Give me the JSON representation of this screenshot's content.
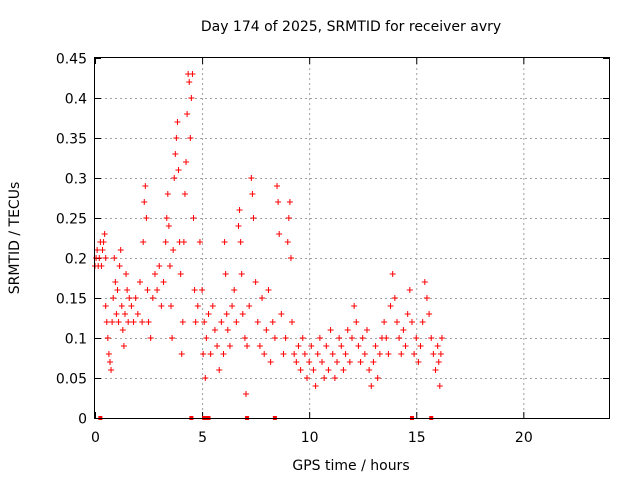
{
  "chart_data": {
    "type": "scatter",
    "title": "Day 174 of 2025, SRMTID for receiver avry",
    "xlabel": "GPS time / hours",
    "ylabel": "SRMTID / TECUs",
    "xlim": [
      0,
      24
    ],
    "ylim": [
      0,
      0.45
    ],
    "xticks": [
      0,
      5,
      10,
      15,
      20
    ],
    "yticks": [
      0,
      0.05,
      0.1,
      0.15,
      0.2,
      0.25,
      0.3,
      0.35,
      0.4,
      0.45
    ],
    "xtick_labels": [
      "0",
      "5",
      "10",
      "15",
      "20"
    ],
    "ytick_labels": [
      "0",
      "0.05",
      "0.1",
      "0.15",
      "0.2",
      "0.25",
      "0.3",
      "0.35",
      "0.4",
      "0.45"
    ],
    "grid": true,
    "marker": "plus",
    "color": "#ff0000",
    "series": [
      {
        "points": [
          [
            0.0,
            0.19
          ],
          [
            0.05,
            0.2
          ],
          [
            0.1,
            0.21
          ],
          [
            0.15,
            0.19
          ],
          [
            0.2,
            0.2
          ],
          [
            0.25,
            0.22
          ],
          [
            0.3,
            0.19
          ],
          [
            0.35,
            0.21
          ],
          [
            0.4,
            0.22
          ],
          [
            0.45,
            0.23
          ],
          [
            0.5,
            0.2
          ],
          [
            0.5,
            0.14
          ],
          [
            0.55,
            0.12
          ],
          [
            0.6,
            0.1
          ],
          [
            0.65,
            0.08
          ],
          [
            0.7,
            0.07
          ],
          [
            0.75,
            0.06
          ],
          [
            0.8,
            0.12
          ],
          [
            0.85,
            0.15
          ],
          [
            0.9,
            0.2
          ],
          [
            0.95,
            0.17
          ],
          [
            1.0,
            0.13
          ],
          [
            1.05,
            0.16
          ],
          [
            1.1,
            0.12
          ],
          [
            1.15,
            0.19
          ],
          [
            1.2,
            0.21
          ],
          [
            1.25,
            0.14
          ],
          [
            1.3,
            0.11
          ],
          [
            1.35,
            0.09
          ],
          [
            1.4,
            0.13
          ],
          [
            1.45,
            0.18
          ],
          [
            1.5,
            0.16
          ],
          [
            1.55,
            0.12
          ],
          [
            1.6,
            0.15
          ],
          [
            1.7,
            0.14
          ],
          [
            1.8,
            0.12
          ],
          [
            1.9,
            0.15
          ],
          [
            2.0,
            0.13
          ],
          [
            2.1,
            0.17
          ],
          [
            2.2,
            0.12
          ],
          [
            2.25,
            0.22
          ],
          [
            2.3,
            0.27
          ],
          [
            2.35,
            0.29
          ],
          [
            2.4,
            0.25
          ],
          [
            2.45,
            0.16
          ],
          [
            2.5,
            0.12
          ],
          [
            2.6,
            0.1
          ],
          [
            2.7,
            0.15
          ],
          [
            2.8,
            0.18
          ],
          [
            2.9,
            0.16
          ],
          [
            3.0,
            0.19
          ],
          [
            3.1,
            0.14
          ],
          [
            3.2,
            0.17
          ],
          [
            3.3,
            0.22
          ],
          [
            3.35,
            0.25
          ],
          [
            3.4,
            0.28
          ],
          [
            3.45,
            0.24
          ],
          [
            3.5,
            0.19
          ],
          [
            3.55,
            0.14
          ],
          [
            3.6,
            0.1
          ],
          [
            3.65,
            0.21
          ],
          [
            3.7,
            0.3
          ],
          [
            3.75,
            0.33
          ],
          [
            3.8,
            0.35
          ],
          [
            3.85,
            0.37
          ],
          [
            3.9,
            0.31
          ],
          [
            3.95,
            0.22
          ],
          [
            4.0,
            0.18
          ],
          [
            4.05,
            0.08
          ],
          [
            4.1,
            0.12
          ],
          [
            4.15,
            0.22
          ],
          [
            4.2,
            0.28
          ],
          [
            4.25,
            0.32
          ],
          [
            4.3,
            0.38
          ],
          [
            4.35,
            0.43
          ],
          [
            4.4,
            0.42
          ],
          [
            4.45,
            0.35
          ],
          [
            4.5,
            0.4
          ],
          [
            4.55,
            0.43
          ],
          [
            4.6,
            0.25
          ],
          [
            4.65,
            0.16
          ],
          [
            4.7,
            0.12
          ],
          [
            4.8,
            0.14
          ],
          [
            4.9,
            0.22
          ],
          [
            5.0,
            0.16
          ],
          [
            5.05,
            0.08
          ],
          [
            5.1,
            0.12
          ],
          [
            5.15,
            0.05
          ],
          [
            5.2,
            0.1
          ],
          [
            5.3,
            0.13
          ],
          [
            5.4,
            0.08
          ],
          [
            5.5,
            0.14
          ],
          [
            5.6,
            0.11
          ],
          [
            5.7,
            0.09
          ],
          [
            5.8,
            0.06
          ],
          [
            5.9,
            0.12
          ],
          [
            6.0,
            0.08
          ],
          [
            6.05,
            0.22
          ],
          [
            6.1,
            0.18
          ],
          [
            6.15,
            0.13
          ],
          [
            6.2,
            0.11
          ],
          [
            6.3,
            0.09
          ],
          [
            6.4,
            0.14
          ],
          [
            6.5,
            0.16
          ],
          [
            6.6,
            0.12
          ],
          [
            6.7,
            0.24
          ],
          [
            6.75,
            0.26
          ],
          [
            6.8,
            0.22
          ],
          [
            6.85,
            0.18
          ],
          [
            6.9,
            0.13
          ],
          [
            7.0,
            0.1
          ],
          [
            7.05,
            0.03
          ],
          [
            7.1,
            0.09
          ],
          [
            7.2,
            0.14
          ],
          [
            7.3,
            0.3
          ],
          [
            7.35,
            0.28
          ],
          [
            7.4,
            0.25
          ],
          [
            7.5,
            0.17
          ],
          [
            7.6,
            0.12
          ],
          [
            7.7,
            0.09
          ],
          [
            7.8,
            0.15
          ],
          [
            7.9,
            0.08
          ],
          [
            8.0,
            0.11
          ],
          [
            8.1,
            0.16
          ],
          [
            8.2,
            0.07
          ],
          [
            8.3,
            0.12
          ],
          [
            8.4,
            0.1
          ],
          [
            8.5,
            0.29
          ],
          [
            8.55,
            0.27
          ],
          [
            8.6,
            0.23
          ],
          [
            8.7,
            0.13
          ],
          [
            8.8,
            0.08
          ],
          [
            8.9,
            0.1
          ],
          [
            9.0,
            0.22
          ],
          [
            9.05,
            0.25
          ],
          [
            9.1,
            0.27
          ],
          [
            9.15,
            0.2
          ],
          [
            9.2,
            0.12
          ],
          [
            9.3,
            0.08
          ],
          [
            9.4,
            0.07
          ],
          [
            9.5,
            0.09
          ],
          [
            9.6,
            0.06
          ],
          [
            9.7,
            0.1
          ],
          [
            9.8,
            0.08
          ],
          [
            9.9,
            0.05
          ],
          [
            10.0,
            0.07
          ],
          [
            10.1,
            0.09
          ],
          [
            10.2,
            0.06
          ],
          [
            10.3,
            0.04
          ],
          [
            10.4,
            0.08
          ],
          [
            10.5,
            0.1
          ],
          [
            10.6,
            0.07
          ],
          [
            10.7,
            0.05
          ],
          [
            10.8,
            0.09
          ],
          [
            10.9,
            0.06
          ],
          [
            11.0,
            0.11
          ],
          [
            11.1,
            0.08
          ],
          [
            11.2,
            0.05
          ],
          [
            11.3,
            0.07
          ],
          [
            11.4,
            0.1
          ],
          [
            11.5,
            0.09
          ],
          [
            11.6,
            0.06
          ],
          [
            11.7,
            0.08
          ],
          [
            11.8,
            0.11
          ],
          [
            11.9,
            0.07
          ],
          [
            12.0,
            0.1
          ],
          [
            12.1,
            0.14
          ],
          [
            12.2,
            0.12
          ],
          [
            12.3,
            0.09
          ],
          [
            12.4,
            0.07
          ],
          [
            12.5,
            0.1
          ],
          [
            12.6,
            0.08
          ],
          [
            12.7,
            0.11
          ],
          [
            12.8,
            0.06
          ],
          [
            12.9,
            0.04
          ],
          [
            13.0,
            0.07
          ],
          [
            13.1,
            0.09
          ],
          [
            13.2,
            0.05
          ],
          [
            13.3,
            0.08
          ],
          [
            13.4,
            0.1
          ],
          [
            13.5,
            0.12
          ],
          [
            13.6,
            0.1
          ],
          [
            13.7,
            0.08
          ],
          [
            13.8,
            0.14
          ],
          [
            13.9,
            0.18
          ],
          [
            14.0,
            0.15
          ],
          [
            14.1,
            0.12
          ],
          [
            14.2,
            0.1
          ],
          [
            14.3,
            0.08
          ],
          [
            14.4,
            0.11
          ],
          [
            14.5,
            0.09
          ],
          [
            14.6,
            0.13
          ],
          [
            14.7,
            0.16
          ],
          [
            14.8,
            0.12
          ],
          [
            14.9,
            0.08
          ],
          [
            15.0,
            0.1
          ],
          [
            15.1,
            0.07
          ],
          [
            15.2,
            0.09
          ],
          [
            15.3,
            0.12
          ],
          [
            15.4,
            0.17
          ],
          [
            15.5,
            0.15
          ],
          [
            15.6,
            0.13
          ],
          [
            15.7,
            0.1
          ],
          [
            15.8,
            0.08
          ],
          [
            15.9,
            0.06
          ],
          [
            16.0,
            0.09
          ],
          [
            16.05,
            0.07
          ],
          [
            16.1,
            0.04
          ],
          [
            16.15,
            0.08
          ],
          [
            16.2,
            0.1
          ]
        ]
      }
    ],
    "zero_markers_x": [
      0.25,
      4.5,
      5.1,
      5.2,
      5.3,
      7.1,
      8.4,
      14.8,
      15.7
    ]
  }
}
